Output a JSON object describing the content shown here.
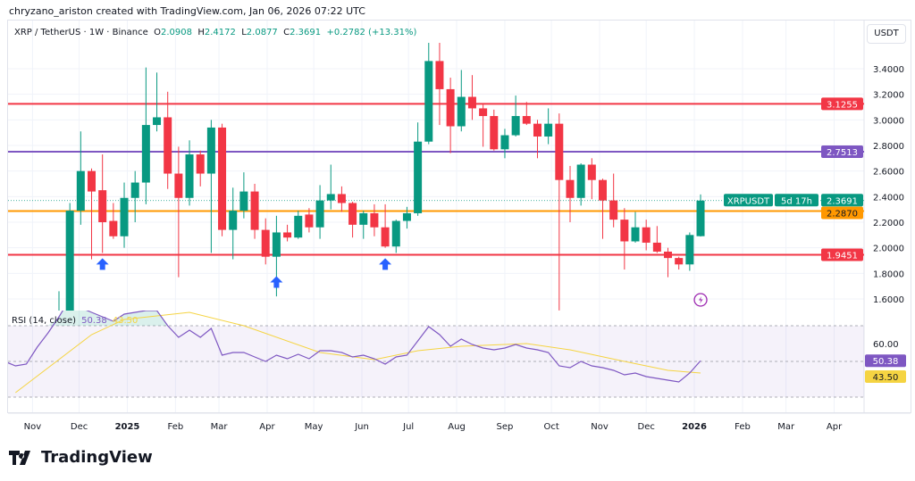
{
  "credit": "chryzano_ariston created with TradingView.com, Jan 06, 2026 07:22 UTC",
  "legend": {
    "symbol": "XRP / TetherUS · 1W · Binance",
    "o_label": "O",
    "o": "2.0908",
    "h_label": "H",
    "h": "2.4172",
    "l_label": "L",
    "l": "2.0877",
    "c_label": "C",
    "c": "2.3691",
    "change": "+0.2782 (+13.31%)"
  },
  "unit_button": "USDT",
  "logo_text": "TradingView",
  "colors": {
    "up": "#089981",
    "down": "#f23645",
    "rsi": "#7e57c2",
    "rsi_ma": "#f5d442",
    "arrow": "#2962ff"
  },
  "chart_data": {
    "type": "candlestick",
    "price_ticks": [
      "3.4000",
      "3.2000",
      "3.0000",
      "2.8000",
      "2.6000",
      "2.4000",
      "2.2000",
      "2.0000",
      "1.8000",
      "1.6000"
    ],
    "ylim": [
      1.5,
      3.7
    ],
    "x_ticks": [
      [
        "2024-11-01",
        "Nov"
      ],
      [
        "2024-12-01",
        "Dec"
      ],
      [
        "2025-01-01",
        "2025"
      ],
      [
        "2025-02-01",
        "Feb"
      ],
      [
        "2025-03-01",
        "Mar"
      ],
      [
        "2025-04-01",
        "Apr"
      ],
      [
        "2025-05-01",
        "May"
      ],
      [
        "2025-06-01",
        "Jun"
      ],
      [
        "2025-07-01",
        "Jul"
      ],
      [
        "2025-08-01",
        "Aug"
      ],
      [
        "2025-09-01",
        "Sep"
      ],
      [
        "2025-10-01",
        "Oct"
      ],
      [
        "2025-11-01",
        "Nov"
      ],
      [
        "2025-12-01",
        "Dec"
      ],
      [
        "2026-01-01",
        "2026"
      ],
      [
        "2026-02-01",
        "Feb"
      ],
      [
        "2026-03-01",
        "Mar"
      ],
      [
        "2026-04-01",
        "Apr"
      ]
    ],
    "candles": [
      [
        "2024-11-18",
        1.4,
        1.66,
        1.35,
        1.5
      ],
      [
        "2024-11-25",
        1.5,
        2.35,
        1.45,
        2.29
      ],
      [
        "2024-12-02",
        2.29,
        2.91,
        2.18,
        2.6
      ],
      [
        "2024-12-09",
        2.6,
        2.62,
        1.91,
        2.44
      ],
      [
        "2024-12-16",
        2.45,
        2.73,
        1.96,
        2.2
      ],
      [
        "2024-12-23",
        2.21,
        2.35,
        2.07,
        2.09
      ],
      [
        "2024-12-30",
        2.09,
        2.51,
        2.0,
        2.39
      ],
      [
        "2025-01-06",
        2.39,
        2.6,
        2.2,
        2.51
      ],
      [
        "2025-01-13",
        2.51,
        3.41,
        2.34,
        2.96
      ],
      [
        "2025-01-20",
        2.96,
        3.37,
        2.91,
        3.02
      ],
      [
        "2025-01-27",
        3.02,
        3.22,
        2.46,
        2.58
      ],
      [
        "2025-02-03",
        2.58,
        2.79,
        1.77,
        2.39
      ],
      [
        "2025-02-10",
        2.39,
        2.84,
        2.33,
        2.73
      ],
      [
        "2025-02-17",
        2.73,
        2.76,
        2.48,
        2.58
      ],
      [
        "2025-02-24",
        2.58,
        3.0,
        1.96,
        2.94
      ],
      [
        "2025-03-03",
        2.94,
        2.97,
        2.09,
        2.14
      ],
      [
        "2025-03-10",
        2.14,
        2.47,
        1.91,
        2.29
      ],
      [
        "2025-03-17",
        2.29,
        2.59,
        2.23,
        2.44
      ],
      [
        "2025-03-24",
        2.44,
        2.5,
        2.07,
        2.14
      ],
      [
        "2025-03-31",
        2.14,
        2.23,
        1.87,
        1.93
      ],
      [
        "2025-04-07",
        1.93,
        2.25,
        1.62,
        2.12
      ],
      [
        "2025-04-14",
        2.12,
        2.18,
        2.05,
        2.08
      ],
      [
        "2025-04-21",
        2.08,
        2.29,
        2.07,
        2.25
      ],
      [
        "2025-04-28",
        2.26,
        2.31,
        2.12,
        2.16
      ],
      [
        "2025-05-05",
        2.16,
        2.49,
        2.07,
        2.37
      ],
      [
        "2025-05-12",
        2.37,
        2.65,
        2.3,
        2.42
      ],
      [
        "2025-05-19",
        2.42,
        2.48,
        2.28,
        2.35
      ],
      [
        "2025-05-26",
        2.35,
        2.36,
        2.08,
        2.18
      ],
      [
        "2025-06-02",
        2.18,
        2.29,
        2.07,
        2.27
      ],
      [
        "2025-06-09",
        2.27,
        2.34,
        2.09,
        2.16
      ],
      [
        "2025-06-16",
        2.16,
        2.34,
        2.0,
        2.01
      ],
      [
        "2025-06-23",
        2.01,
        2.22,
        1.96,
        2.21
      ],
      [
        "2025-06-30",
        2.21,
        2.32,
        2.15,
        2.27
      ],
      [
        "2025-07-07",
        2.27,
        2.98,
        2.25,
        2.83
      ],
      [
        "2025-07-14",
        2.83,
        3.66,
        2.81,
        3.46
      ],
      [
        "2025-07-21",
        3.46,
        3.64,
        2.96,
        3.24
      ],
      [
        "2025-07-28",
        3.24,
        3.33,
        2.74,
        2.95
      ],
      [
        "2025-08-04",
        2.95,
        3.39,
        2.91,
        3.18
      ],
      [
        "2025-08-11",
        3.18,
        3.35,
        3.0,
        3.09
      ],
      [
        "2025-08-18",
        3.09,
        3.12,
        2.79,
        3.03
      ],
      [
        "2025-08-25",
        3.03,
        3.08,
        2.76,
        2.77
      ],
      [
        "2025-09-01",
        2.77,
        2.93,
        2.7,
        2.88
      ],
      [
        "2025-09-08",
        2.88,
        3.19,
        2.87,
        3.03
      ],
      [
        "2025-09-15",
        3.03,
        3.14,
        2.96,
        2.97
      ],
      [
        "2025-09-22",
        2.97,
        3.0,
        2.7,
        2.87
      ],
      [
        "2025-09-29",
        2.87,
        3.09,
        2.81,
        2.97
      ],
      [
        "2025-10-06",
        2.97,
        3.05,
        1.51,
        2.53
      ],
      [
        "2025-10-13",
        2.53,
        2.64,
        2.2,
        2.39
      ],
      [
        "2025-10-20",
        2.39,
        2.66,
        2.33,
        2.65
      ],
      [
        "2025-10-27",
        2.65,
        2.7,
        2.38,
        2.53
      ],
      [
        "2025-11-03",
        2.53,
        2.54,
        2.07,
        2.37
      ],
      [
        "2025-11-10",
        2.37,
        2.58,
        2.16,
        2.22
      ],
      [
        "2025-11-17",
        2.22,
        2.31,
        1.83,
        2.05
      ],
      [
        "2025-11-24",
        2.05,
        2.28,
        2.04,
        2.16
      ],
      [
        "2025-12-01",
        2.16,
        2.22,
        1.98,
        2.04
      ],
      [
        "2025-12-08",
        2.04,
        2.17,
        1.96,
        1.97
      ],
      [
        "2025-12-15",
        1.97,
        2.0,
        1.77,
        1.92
      ],
      [
        "2025-12-22",
        1.92,
        1.93,
        1.83,
        1.87
      ],
      [
        "2025-12-29",
        1.87,
        2.12,
        1.82,
        2.1
      ],
      [
        "2026-01-05",
        2.0908,
        2.4172,
        2.0877,
        2.3691
      ]
    ],
    "levels": [
      {
        "value": "3.1255",
        "color": "#f23645"
      },
      {
        "value": "2.7513",
        "color": "#7e57c2"
      },
      {
        "value": "2.2870",
        "color": "#ff9800"
      },
      {
        "value": "1.9451",
        "color": "#f23645"
      }
    ],
    "last_price": {
      "symbol": "XRPUSDT",
      "value": "2.3691",
      "countdown": "5d 17h"
    },
    "arrows": [
      {
        "date": "2024-12-16",
        "price": 1.96
      },
      {
        "date": "2025-04-07",
        "price": 1.82
      },
      {
        "date": "2025-06-16",
        "price": 1.96
      }
    ],
    "rsi": {
      "title": "RSI (14, close)",
      "value": "50.38",
      "ma_value": "43.50",
      "tick": "60.00",
      "band": [
        30,
        70
      ],
      "values": [
        [
          "2024-10-14",
          50
        ],
        [
          "2024-10-21",
          47.5
        ],
        [
          "2024-10-28",
          48.5
        ],
        [
          "2024-11-04",
          58
        ],
        [
          "2024-11-11",
          66
        ],
        [
          "2024-11-18",
          75
        ],
        [
          "2024-11-25",
          85
        ],
        [
          "2024-12-02",
          80
        ],
        [
          "2024-12-09",
          77.5
        ],
        [
          "2024-12-16",
          75
        ],
        [
          "2024-12-23",
          72.5
        ],
        [
          "2024-12-30",
          76.5
        ],
        [
          "2025-01-06",
          77.5
        ],
        [
          "2025-01-13",
          78.5
        ],
        [
          "2025-01-20",
          78.5
        ],
        [
          "2025-01-27",
          70
        ],
        [
          "2025-02-03",
          63.5
        ],
        [
          "2025-02-10",
          67.5
        ],
        [
          "2025-02-17",
          63.5
        ],
        [
          "2025-02-24",
          68.5
        ],
        [
          "2025-03-03",
          53.5
        ],
        [
          "2025-03-10",
          55
        ],
        [
          "2025-03-17",
          55
        ],
        [
          "2025-03-24",
          52.5
        ],
        [
          "2025-03-31",
          50
        ],
        [
          "2025-04-07",
          53.5
        ],
        [
          "2025-04-14",
          51.5
        ],
        [
          "2025-04-21",
          54
        ],
        [
          "2025-04-28",
          51.5
        ],
        [
          "2025-05-05",
          56
        ],
        [
          "2025-05-12",
          56
        ],
        [
          "2025-05-19",
          55
        ],
        [
          "2025-05-26",
          52.5
        ],
        [
          "2025-06-02",
          53.5
        ],
        [
          "2025-06-09",
          51.5
        ],
        [
          "2025-06-16",
          48.5
        ],
        [
          "2025-06-23",
          52.5
        ],
        [
          "2025-06-30",
          53.5
        ],
        [
          "2025-07-07",
          61.5
        ],
        [
          "2025-07-14",
          69.5
        ],
        [
          "2025-07-21",
          65
        ],
        [
          "2025-07-28",
          58.5
        ],
        [
          "2025-08-04",
          62.5
        ],
        [
          "2025-08-11",
          59.5
        ],
        [
          "2025-08-18",
          57.5
        ],
        [
          "2025-08-25",
          56.5
        ],
        [
          "2025-09-01",
          57.5
        ],
        [
          "2025-09-08",
          59.5
        ],
        [
          "2025-09-15",
          57.5
        ],
        [
          "2025-09-22",
          56.5
        ],
        [
          "2025-09-29",
          55
        ],
        [
          "2025-10-06",
          47.5
        ],
        [
          "2025-10-13",
          46.5
        ],
        [
          "2025-10-20",
          50
        ],
        [
          "2025-10-27",
          47.5
        ],
        [
          "2025-11-03",
          46.5
        ],
        [
          "2025-11-10",
          45
        ],
        [
          "2025-11-17",
          42.5
        ],
        [
          "2025-11-24",
          43.5
        ],
        [
          "2025-12-01",
          41.5
        ],
        [
          "2025-12-08",
          40.5
        ],
        [
          "2025-12-15",
          39.5
        ],
        [
          "2025-12-22",
          38.5
        ],
        [
          "2025-12-29",
          43.5
        ],
        [
          "2026-01-05",
          50.38
        ]
      ],
      "ma": [
        [
          "2024-10-21",
          32.5
        ],
        [
          "2024-12-09",
          65
        ],
        [
          "2024-12-30",
          73.5
        ],
        [
          "2025-02-10",
          77.5
        ],
        [
          "2025-03-17",
          70
        ],
        [
          "2025-05-05",
          55
        ],
        [
          "2025-06-09",
          51
        ],
        [
          "2025-07-07",
          56
        ],
        [
          "2025-08-04",
          58.5
        ],
        [
          "2025-09-15",
          60
        ],
        [
          "2025-10-13",
          56.5
        ],
        [
          "2025-11-17",
          50
        ],
        [
          "2025-12-15",
          45
        ],
        [
          "2026-01-05",
          43.5
        ]
      ]
    }
  }
}
